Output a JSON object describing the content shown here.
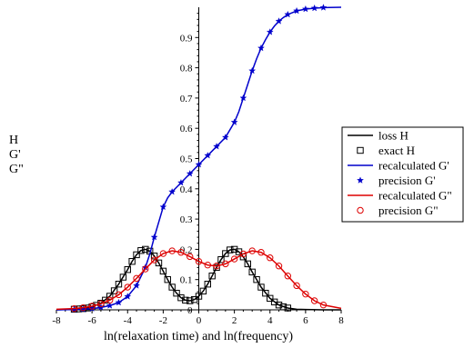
{
  "chart_data": {
    "type": "line",
    "xlabel": "ln(relaxation time) and ln(frequency)",
    "ylabel_lines": [
      "H",
      "G'",
      "G\""
    ],
    "xlim": [
      -8,
      8
    ],
    "ylim": [
      0,
      1.0
    ],
    "xticks": [
      -8,
      -6,
      -4,
      -2,
      0,
      2,
      4,
      6,
      8
    ],
    "yticks": [
      0,
      0.1,
      0.2,
      0.3,
      0.4,
      0.5,
      0.6,
      0.7,
      0.8,
      0.9
    ],
    "grid": false,
    "legend_position": "right",
    "series": [
      {
        "name": "loss H",
        "style": "line",
        "color": "#000000",
        "x": [
          -8,
          -7.5,
          -7,
          -6.5,
          -6,
          -5.5,
          -5,
          -4.5,
          -4,
          -3.75,
          -3.5,
          -3.25,
          -3,
          -2.75,
          -2.5,
          -2.25,
          -2,
          -1.75,
          -1.5,
          -1.25,
          -1,
          -0.75,
          -0.5,
          -0.25,
          0,
          0.25,
          0.5,
          0.75,
          1,
          1.25,
          1.5,
          1.75,
          2,
          2.25,
          2.5,
          2.75,
          3,
          3.5,
          4,
          4.5,
          5,
          5.5,
          6,
          7,
          8
        ],
        "y": [
          0,
          0.001,
          0.002,
          0.004,
          0.01,
          0.022,
          0.045,
          0.085,
          0.133,
          0.16,
          0.182,
          0.196,
          0.2,
          0.194,
          0.178,
          0.155,
          0.128,
          0.1,
          0.075,
          0.055,
          0.04,
          0.032,
          0.03,
          0.034,
          0.045,
          0.062,
          0.085,
          0.112,
          0.14,
          0.166,
          0.186,
          0.198,
          0.2,
          0.192,
          0.175,
          0.152,
          0.125,
          0.075,
          0.038,
          0.016,
          0.006,
          0.002,
          0.001,
          0,
          0
        ]
      },
      {
        "name": "exact H",
        "style": "marker-square",
        "color": "#000000",
        "x": [
          -7,
          -6.75,
          -6.5,
          -6.25,
          -6,
          -5.75,
          -5.5,
          -5.25,
          -5,
          -4.75,
          -4.5,
          -4.25,
          -4,
          -3.75,
          -3.5,
          -3.25,
          -3,
          -2.75,
          -2.5,
          -2.25,
          -2,
          -1.75,
          -1.5,
          -1.25,
          -1,
          -0.75,
          -0.5,
          -0.25,
          0,
          0.25,
          0.5,
          0.75,
          1,
          1.25,
          1.5,
          1.75,
          2,
          2.25,
          2.5,
          2.75,
          3,
          3.25,
          3.5,
          3.75,
          4,
          4.25,
          4.5,
          4.75,
          5
        ],
        "y": [
          0.002,
          0.003,
          0.004,
          0.006,
          0.01,
          0.015,
          0.022,
          0.032,
          0.045,
          0.063,
          0.085,
          0.108,
          0.133,
          0.16,
          0.182,
          0.196,
          0.2,
          0.194,
          0.178,
          0.155,
          0.128,
          0.1,
          0.075,
          0.055,
          0.04,
          0.032,
          0.03,
          0.034,
          0.045,
          0.062,
          0.085,
          0.112,
          0.14,
          0.166,
          0.186,
          0.198,
          0.2,
          0.192,
          0.175,
          0.152,
          0.125,
          0.1,
          0.075,
          0.055,
          0.038,
          0.026,
          0.016,
          0.01,
          0.006
        ]
      },
      {
        "name": "recalculated G'",
        "style": "line",
        "color": "#0000cc",
        "x": [
          -8,
          -7,
          -6.5,
          -6,
          -5.5,
          -5,
          -4.5,
          -4,
          -3.5,
          -3,
          -2.75,
          -2.5,
          -2.25,
          -2,
          -1.75,
          -1.5,
          -1.25,
          -1,
          -0.75,
          -0.5,
          -0.25,
          0,
          0.5,
          1,
          1.5,
          2,
          2.25,
          2.5,
          2.75,
          3,
          3.25,
          3.5,
          3.75,
          4,
          4.25,
          4.5,
          4.75,
          5,
          5.5,
          6,
          6.5,
          7,
          8
        ],
        "y": [
          0,
          0.001,
          0.002,
          0.004,
          0.008,
          0.014,
          0.024,
          0.044,
          0.08,
          0.14,
          0.185,
          0.24,
          0.29,
          0.34,
          0.37,
          0.39,
          0.405,
          0.42,
          0.435,
          0.45,
          0.465,
          0.48,
          0.51,
          0.54,
          0.57,
          0.62,
          0.655,
          0.7,
          0.745,
          0.79,
          0.83,
          0.865,
          0.893,
          0.918,
          0.938,
          0.954,
          0.966,
          0.976,
          0.988,
          0.994,
          0.997,
          0.999,
          1.0
        ]
      },
      {
        "name": "precision G'",
        "style": "marker-star",
        "color": "#0000cc",
        "x": [
          -7,
          -6.5,
          -6,
          -5.5,
          -5,
          -4.5,
          -4,
          -3.5,
          -3,
          -2.5,
          -2,
          -1.5,
          -1,
          -0.5,
          0,
          0.5,
          1,
          1.5,
          2,
          2.5,
          3,
          3.5,
          4,
          4.5,
          5,
          5.5,
          6,
          6.5,
          7
        ],
        "y": [
          0.001,
          0.002,
          0.004,
          0.008,
          0.014,
          0.024,
          0.044,
          0.08,
          0.14,
          0.24,
          0.34,
          0.39,
          0.42,
          0.45,
          0.48,
          0.51,
          0.54,
          0.57,
          0.62,
          0.7,
          0.79,
          0.865,
          0.918,
          0.954,
          0.976,
          0.988,
          0.994,
          0.997,
          0.999
        ]
      },
      {
        "name": "recalculated G\"",
        "style": "line",
        "color": "#dd0000",
        "x": [
          -8,
          -7,
          -6.5,
          -6,
          -5.5,
          -5,
          -4.5,
          -4,
          -3.5,
          -3,
          -2.5,
          -2,
          -1.5,
          -1,
          -0.5,
          0,
          0.5,
          1,
          1.5,
          2,
          2.5,
          3,
          3.5,
          4,
          4.5,
          5,
          5.5,
          6,
          6.5,
          7,
          8
        ],
        "y": [
          0.002,
          0.004,
          0.007,
          0.012,
          0.02,
          0.032,
          0.05,
          0.075,
          0.104,
          0.135,
          0.165,
          0.186,
          0.195,
          0.19,
          0.176,
          0.16,
          0.148,
          0.145,
          0.152,
          0.168,
          0.185,
          0.195,
          0.19,
          0.172,
          0.145,
          0.112,
          0.08,
          0.052,
          0.03,
          0.016,
          0.005
        ]
      },
      {
        "name": "precision G\"",
        "style": "marker-circle",
        "color": "#dd0000",
        "x": [
          -7,
          -6.5,
          -6,
          -5.5,
          -5,
          -4.5,
          -4,
          -3.5,
          -3,
          -2.5,
          -2,
          -1.5,
          -1,
          -0.5,
          0,
          0.5,
          1,
          1.5,
          2,
          2.5,
          3,
          3.5,
          4,
          4.5,
          5,
          5.5,
          6,
          6.5,
          7
        ],
        "y": [
          0.004,
          0.007,
          0.012,
          0.02,
          0.032,
          0.05,
          0.075,
          0.104,
          0.135,
          0.165,
          0.186,
          0.195,
          0.19,
          0.176,
          0.16,
          0.148,
          0.145,
          0.152,
          0.168,
          0.185,
          0.195,
          0.19,
          0.172,
          0.145,
          0.112,
          0.08,
          0.052,
          0.03,
          0.016
        ]
      }
    ]
  }
}
